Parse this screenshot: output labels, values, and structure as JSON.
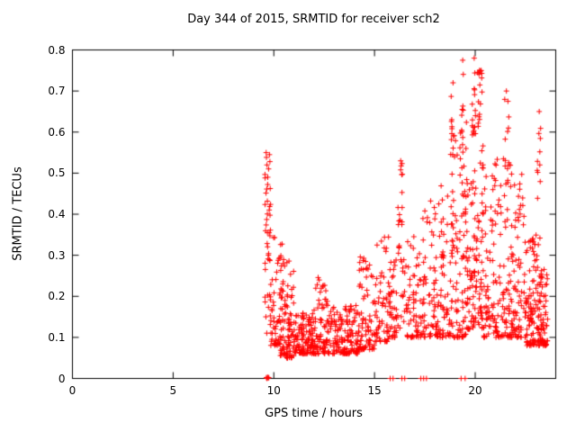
{
  "chart_data": {
    "type": "scatter",
    "title": "Day 344 of 2015, SRMTID for receiver sch2",
    "xlabel": "GPS time / hours",
    "ylabel": "SRMTID / TECUs",
    "xlim": [
      0,
      24
    ],
    "ylim": [
      0,
      0.8
    ],
    "xticks": [
      0,
      5,
      10,
      15,
      20
    ],
    "xtick_labels": [
      "0",
      "5",
      "10",
      "15",
      "20"
    ],
    "yticks": [
      0,
      0.1,
      0.2,
      0.3,
      0.4,
      0.5,
      0.6,
      0.7,
      0.8
    ],
    "ytick_labels": [
      "0",
      "0.1",
      "0.2",
      "0.3",
      "0.4",
      "0.5",
      "0.6",
      "0.7",
      "0.8"
    ],
    "grid": false,
    "legend": "none",
    "marker": "plus",
    "marker_color": "#ff0000",
    "axis_color": "#000000",
    "background_color": "#ffffff",
    "data_x_range_with_points": [
      9.55,
      23.6
    ],
    "series": [
      {
        "name": "SRMTID",
        "clusters_format": "[x_min, x_max, y_min, y_max, count, distribution(u=uniform, b=bottom-weighted)]",
        "clusters": [
          [
            9.55,
            9.85,
            0.1,
            0.55,
            45,
            "u"
          ],
          [
            9.85,
            10.35,
            0.08,
            0.35,
            50,
            "b"
          ],
          [
            10.35,
            10.55,
            0.12,
            0.33,
            12,
            "u"
          ],
          [
            10.3,
            11.0,
            0.05,
            0.3,
            90,
            "b"
          ],
          [
            11.0,
            12.0,
            0.06,
            0.16,
            120,
            "b"
          ],
          [
            12.0,
            12.7,
            0.06,
            0.25,
            80,
            "b"
          ],
          [
            12.7,
            14.2,
            0.06,
            0.18,
            150,
            "b"
          ],
          [
            14.2,
            15.0,
            0.07,
            0.3,
            80,
            "b"
          ],
          [
            15.0,
            15.7,
            0.09,
            0.35,
            60,
            "b"
          ],
          [
            15.7,
            16.1,
            0.1,
            0.3,
            45,
            "b"
          ],
          [
            16.15,
            16.4,
            0.12,
            0.53,
            25,
            "u"
          ],
          [
            16.4,
            17.3,
            0.1,
            0.35,
            70,
            "b"
          ],
          [
            17.3,
            18.3,
            0.1,
            0.45,
            90,
            "b"
          ],
          [
            18.3,
            19.0,
            0.1,
            0.6,
            70,
            "b"
          ],
          [
            18.8,
            18.98,
            0.3,
            0.72,
            15,
            "u"
          ],
          [
            19.0,
            19.6,
            0.1,
            0.65,
            80,
            "b"
          ],
          [
            19.3,
            19.45,
            0.55,
            0.78,
            8,
            "u"
          ],
          [
            19.6,
            20.4,
            0.12,
            0.6,
            110,
            "b"
          ],
          [
            19.85,
            20.35,
            0.58,
            0.76,
            30,
            "u"
          ],
          [
            20.4,
            21.2,
            0.1,
            0.55,
            90,
            "b"
          ],
          [
            21.2,
            21.8,
            0.1,
            0.55,
            60,
            "b"
          ],
          [
            21.45,
            21.7,
            0.45,
            0.7,
            12,
            "u"
          ],
          [
            21.8,
            22.5,
            0.1,
            0.5,
            80,
            "b"
          ],
          [
            22.5,
            23.3,
            0.08,
            0.35,
            130,
            "b"
          ],
          [
            23.05,
            23.25,
            0.4,
            0.65,
            10,
            "u"
          ],
          [
            23.3,
            23.6,
            0.08,
            0.3,
            40,
            "b"
          ]
        ],
        "points": [
          [
            9.62,
            0.55
          ],
          [
            9.66,
            0.52
          ],
          [
            9.7,
            0.49
          ],
          [
            16.3,
            0.53
          ],
          [
            18.9,
            0.72
          ],
          [
            19.38,
            0.775
          ],
          [
            19.95,
            0.78
          ],
          [
            20.3,
            0.75
          ],
          [
            21.55,
            0.7
          ],
          [
            23.18,
            0.65
          ],
          [
            9.63,
            0.002
          ],
          [
            9.66,
            0.0
          ],
          [
            9.69,
            0.003
          ],
          [
            9.72,
            0.001
          ],
          [
            9.75,
            0.002
          ],
          [
            15.78,
            0.0
          ],
          [
            15.92,
            0.0
          ],
          [
            16.36,
            0.0
          ],
          [
            16.5,
            0.0
          ],
          [
            17.3,
            0.0
          ],
          [
            17.44,
            0.0
          ],
          [
            17.58,
            0.0
          ],
          [
            19.3,
            0.0
          ],
          [
            19.5,
            0.0
          ]
        ]
      }
    ]
  }
}
